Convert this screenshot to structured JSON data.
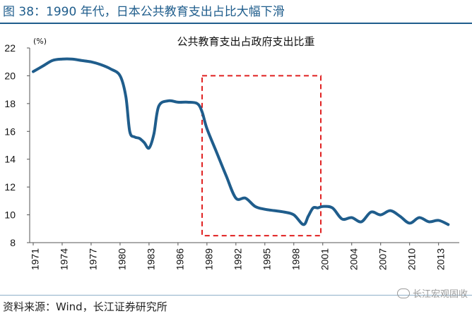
{
  "figure": {
    "caption": "图 38：1990 年代，日本公共教育支出占比大幅下滑",
    "source": "资料来源：Wind，长江证券研究所",
    "watermark": "长江宏观固收"
  },
  "colors": {
    "line": "#1f5d8c",
    "highlight_box": "#e02020",
    "caption": "#1f5d8c"
  },
  "chart_data": {
    "type": "line",
    "title": "公共教育支出占政府支出比重",
    "ylabel": "(%)",
    "xlabel": "",
    "ylim": [
      8,
      22
    ],
    "xlim": [
      1971,
      2015
    ],
    "y_ticks": [
      8,
      10,
      12,
      14,
      16,
      18,
      20,
      22
    ],
    "x_ticks": [
      1971,
      1974,
      1977,
      1980,
      1983,
      1986,
      1989,
      1992,
      1995,
      1998,
      2001,
      2004,
      2007,
      2010,
      2013
    ],
    "grid": false,
    "legend": "none",
    "highlight_range": {
      "x": [
        1988.5,
        2000.8
      ],
      "y": [
        8.5,
        20
      ]
    },
    "series": [
      {
        "x": [
          1971,
          1972,
          1973,
          1974,
          1975,
          1976,
          1977,
          1978,
          1979,
          1980,
          1980.6,
          1981,
          1981.5,
          1982,
          1982.5,
          1983,
          1983.5,
          1984,
          1985,
          1986,
          1987,
          1988,
          1988.5,
          1989,
          1990,
          1991,
          1992,
          1993,
          1994,
          1995,
          1996,
          1997,
          1998,
          1999,
          1999.5,
          2000,
          2000.5,
          2001,
          2002,
          2003,
          2004,
          2005,
          2006,
          2007,
          2008,
          2009,
          2010,
          2011,
          2012,
          2013,
          2014
        ],
        "y": [
          20.3,
          20.7,
          21.1,
          21.2,
          21.2,
          21.1,
          21.0,
          20.8,
          20.5,
          20.0,
          18.5,
          16.0,
          15.6,
          15.5,
          15.2,
          14.8,
          15.8,
          17.8,
          18.2,
          18.1,
          18.1,
          18.0,
          17.4,
          16.2,
          14.5,
          12.8,
          11.2,
          11.2,
          10.6,
          10.4,
          10.3,
          10.2,
          10.0,
          9.3,
          9.9,
          10.5,
          10.5,
          10.6,
          10.5,
          9.7,
          9.8,
          9.5,
          10.2,
          10.0,
          10.3,
          9.9,
          9.4,
          9.8,
          9.5,
          9.6,
          9.3
        ]
      }
    ]
  }
}
